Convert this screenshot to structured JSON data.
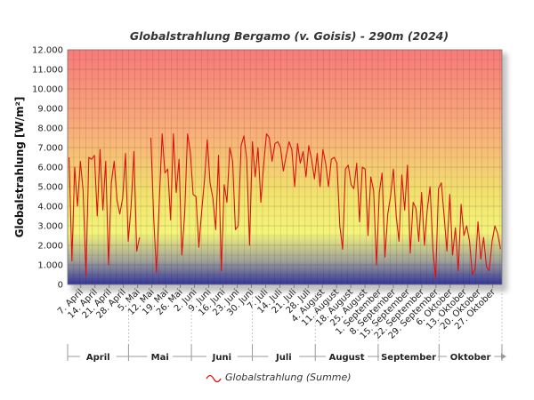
{
  "chart_data": {
    "type": "line",
    "title": "Globalstrahlung Bergamo (v. Goisis) - 290m (2024)",
    "ylabel": "Globalstrahlung [W/m²]",
    "xlabel": "",
    "ylim": [
      0,
      12000
    ],
    "yticks": [
      "0",
      "1.000",
      "2.000",
      "3.000",
      "4.000",
      "5.000",
      "6.000",
      "7.000",
      "8.000",
      "9.000",
      "10.000",
      "11.000",
      "12.000"
    ],
    "x_start": "2024-04-01",
    "x_end": "2024-10-31",
    "xtick_labels": [
      "7. April",
      "14. April",
      "21. April",
      "28. April",
      "5. Mai",
      "12. Mai",
      "19. Mai",
      "26. Mai",
      "2. Juni",
      "9. Juni",
      "16. Juni",
      "23. Juni",
      "30. Juni",
      "7. Juli",
      "14. Juli",
      "21. Juli",
      "28. Juli",
      "4. August",
      "11. August",
      "18. August",
      "25. August",
      "1. September",
      "8. September",
      "15. September",
      "22. September",
      "29. September",
      "6. Oktober",
      "13. Oktober",
      "20. Oktober",
      "27. Oktober"
    ],
    "months": [
      "April",
      "Mai",
      "Juni",
      "Juli",
      "August",
      "September",
      "Oktober"
    ],
    "grid": true,
    "legend_position": "bottom-center",
    "series": [
      {
        "name": "Globalstrahlung (Summe)",
        "color": "#dd1111",
        "values": [
          6500,
          1200,
          6000,
          4000,
          6300,
          4800,
          400,
          6500,
          6400,
          6600,
          3500,
          6900,
          3800,
          6300,
          1000,
          5200,
          6300,
          4300,
          3600,
          4400,
          6700,
          2200,
          4000,
          6800,
          1700,
          2400,
          null,
          null,
          null,
          7500,
          3500,
          600,
          4300,
          7700,
          5700,
          5900,
          3300,
          7700,
          4700,
          6400,
          1500,
          3600,
          7700,
          6800,
          4600,
          4500,
          1900,
          3700,
          5300,
          7400,
          5200,
          4400,
          2800,
          6600,
          700,
          5100,
          4200,
          7000,
          6300,
          2800,
          3000,
          7100,
          7600,
          6400,
          2000,
          7300,
          5500,
          7000,
          4200,
          6100,
          7700,
          7500,
          6300,
          7200,
          7300,
          7000,
          5800,
          6600,
          7300,
          6900,
          5000,
          7200,
          6200,
          6800,
          5500,
          7100,
          6400,
          5400,
          6700,
          5000,
          6900,
          6200,
          5000,
          6400,
          6500,
          6200,
          3000,
          1800,
          5900,
          6100,
          5100,
          4900,
          6200,
          3200,
          6000,
          5900,
          2500,
          5500,
          4800,
          1000,
          4700,
          5700,
          1400,
          3600,
          4500,
          5900,
          3500,
          2200,
          5600,
          3800,
          6100,
          1600,
          4200,
          3900,
          2200,
          4700,
          2000,
          3800,
          5000,
          1800,
          300,
          4900,
          5200,
          3500,
          1700,
          4600,
          1500,
          2900,
          700,
          4100,
          2500,
          3000,
          2200,
          500,
          800,
          3200,
          1300,
          2400,
          900,
          700,
          2200,
          3000,
          2600,
          1800
        ]
      }
    ]
  }
}
